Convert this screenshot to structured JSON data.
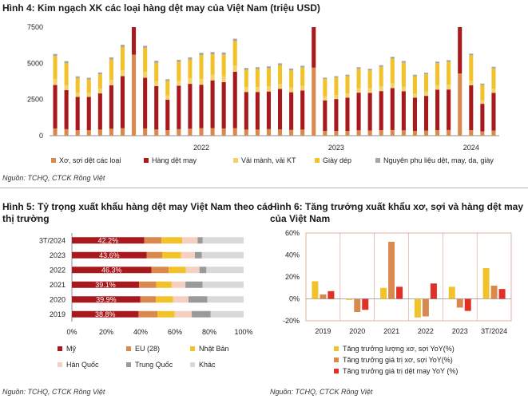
{
  "colors": {
    "yarn": "#d9894e",
    "garment": "#a7191c",
    "fabric": "#f0d46b",
    "footwear": "#f2c22b",
    "materials": "#a6a6a6",
    "us": "#a7191c",
    "eu": "#d9894e",
    "jp": "#f2c22b",
    "kr": "#f5cfc0",
    "cn": "#9a9a9a",
    "other": "#d9d9d9",
    "g1": "#f2c22b",
    "g2": "#d9894e",
    "g3": "#e03028"
  },
  "chart_data": [
    {
      "id": "h4",
      "type": "bar",
      "stacked": true,
      "title": "Hình 4: Kim ngạch XK các loại hàng dệt may của Việt Nam (triệu USD)",
      "source": "Nguồn: TCHQ, CTCK Rồng Việt",
      "ylim": [
        0,
        7500
      ],
      "yticks": [
        "0",
        "2500",
        "5000",
        "7500"
      ],
      "year_labels": [
        {
          "label": "2022",
          "index": 13
        },
        {
          "label": "2023",
          "index": 25
        },
        {
          "label": "2024",
          "index": 37
        }
      ],
      "series": [
        {
          "name": "Xơ, sợi dệt các loại",
          "color_key": "yarn"
        },
        {
          "name": "Hàng dệt may",
          "color_key": "garment"
        },
        {
          "name": "Vải mành, vải KT",
          "color_key": "fabric"
        },
        {
          "name": "Giày dép",
          "color_key": "footwear"
        },
        {
          "name": "Nguyên phụ liệu dệt, may, da, giày",
          "color_key": "materials"
        }
      ],
      "bars": [
        [
          500,
          3000,
          400,
          1600,
          150
        ],
        [
          450,
          2700,
          350,
          1500,
          150
        ],
        [
          380,
          2300,
          300,
          1000,
          120
        ],
        [
          380,
          2300,
          300,
          900,
          120
        ],
        [
          420,
          2500,
          320,
          1000,
          130
        ],
        [
          480,
          3000,
          380,
          1400,
          150
        ],
        [
          520,
          3600,
          400,
          1600,
          160
        ],
        [
          5600,
          1900,
          0,
          0,
          0
        ],
        [
          500,
          3500,
          400,
          1650,
          160
        ],
        [
          430,
          3000,
          350,
          1250,
          150
        ],
        [
          380,
          2100,
          300,
          1000,
          120
        ],
        [
          450,
          3000,
          350,
          1300,
          140
        ],
        [
          480,
          3100,
          380,
          1300,
          150
        ],
        [
          520,
          3000,
          400,
          1650,
          160
        ],
        [
          520,
          3300,
          400,
          1400,
          160
        ],
        [
          500,
          3200,
          400,
          1500,
          150
        ],
        [
          520,
          3900,
          420,
          1700,
          160
        ],
        [
          420,
          2600,
          330,
          1200,
          130
        ],
        [
          420,
          2600,
          330,
          1250,
          130
        ],
        [
          450,
          2600,
          350,
          1250,
          140
        ],
        [
          430,
          2800,
          340,
          1300,
          130
        ],
        [
          400,
          2600,
          320,
          1200,
          120
        ],
        [
          420,
          2700,
          330,
          1250,
          130
        ],
        [
          4700,
          2800,
          0,
          0,
          0
        ],
        [
          330,
          2100,
          280,
          1200,
          100
        ],
        [
          330,
          2200,
          280,
          1200,
          100
        ],
        [
          330,
          2300,
          280,
          1200,
          100
        ],
        [
          370,
          2600,
          300,
          1350,
          110
        ],
        [
          360,
          2600,
          300,
          1250,
          110
        ],
        [
          380,
          2700,
          320,
          1350,
          120
        ],
        [
          390,
          2900,
          330,
          1700,
          130
        ],
        [
          370,
          2700,
          320,
          1650,
          120
        ],
        [
          330,
          2300,
          280,
          1200,
          100
        ],
        [
          350,
          2400,
          300,
          1200,
          100
        ],
        [
          380,
          2800,
          320,
          1500,
          120
        ],
        [
          390,
          2800,
          330,
          1580,
          120
        ],
        [
          4300,
          3200,
          0,
          0,
          0
        ],
        [
          380,
          3100,
          320,
          1750,
          120
        ],
        [
          300,
          1900,
          250,
          1050,
          100
        ],
        [
          350,
          2600,
          300,
          1400,
          110
        ]
      ]
    },
    {
      "id": "h5",
      "type": "bar",
      "orientation": "horizontal",
      "stacked": true,
      "title_lines": [
        "Hình 5: Tỷ trọng xuất khẩu hàng dệt may Việt Nam theo các",
        "thị trường"
      ],
      "source": "Nguồn: TCHQ, CTCK Rồng Việt",
      "xlim": [
        0,
        100
      ],
      "xticks": [
        "0%",
        "20%",
        "40%",
        "60%",
        "80%",
        "100%"
      ],
      "categories": [
        "3T/2024",
        "2023",
        "2022",
        "2021",
        "2020",
        "2019"
      ],
      "labels": [
        "42.2%",
        "43.6%",
        "46.3%",
        "39.1%",
        "39.9%",
        "38.8%"
      ],
      "series": [
        {
          "name": "Mỹ",
          "color_key": "us",
          "values": [
            42.2,
            43.6,
            46.3,
            39.1,
            39.9,
            38.8
          ]
        },
        {
          "name": "EU (28)",
          "color_key": "eu",
          "values": [
            10,
            9,
            10,
            10,
            9,
            11
          ]
        },
        {
          "name": "Nhật Bản",
          "color_key": "jp",
          "values": [
            12,
            11,
            10,
            9,
            10,
            10
          ]
        },
        {
          "name": "Hàn Quốc",
          "color_key": "kr",
          "values": [
            9,
            8,
            8,
            8,
            9,
            10
          ]
        },
        {
          "name": "Trung Quốc",
          "color_key": "cn",
          "values": [
            3,
            4,
            4,
            10,
            11,
            11
          ]
        },
        {
          "name": "Khác",
          "color_key": "other",
          "values": [
            23.8,
            24.4,
            21.7,
            23.9,
            21.1,
            19.2
          ]
        }
      ]
    },
    {
      "id": "h6",
      "type": "bar",
      "title_lines": [
        "Hình 6: Tăng trưởng xuất khẩu xơ, sợi và hàng dệt may",
        "của Việt Nam"
      ],
      "source": "Nguồn: TCHQ, CTCK Rồng Việt",
      "ylim": [
        -20,
        60
      ],
      "yticks": [
        "-20%",
        "0%",
        "20%",
        "40%",
        "60%"
      ],
      "categories": [
        "2019",
        "2020",
        "2021",
        "2022",
        "2023",
        "3T/2024"
      ],
      "series": [
        {
          "name": "Tăng trưởng lượng xơ, sợi YoY(%)",
          "color_key": "g1",
          "values": [
            16,
            -1,
            10,
            -17,
            11,
            28
          ]
        },
        {
          "name": "Tăng trưởng giá trị xơ, sợi YoY(%)",
          "color_key": "g2",
          "values": [
            4,
            -12,
            52,
            -16,
            -8,
            12
          ]
        },
        {
          "name": "Tăng trưởng giá trị dệt may YoY (%)",
          "color_key": "g3",
          "values": [
            7,
            -10,
            11,
            14,
            -11,
            9
          ]
        }
      ]
    }
  ]
}
